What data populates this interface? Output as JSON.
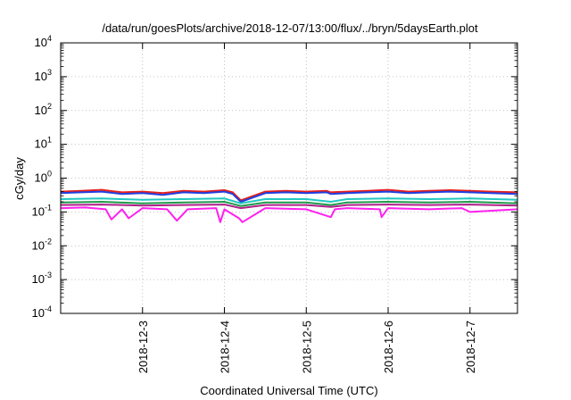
{
  "chart_data": {
    "type": "line",
    "title": "/data/run/goesPlots/archive/2018-12-07/13:00/flux/../bryn/5daysEarth.plot",
    "xlabel": "Coordinated Universal Time (UTC)",
    "ylabel": "cGy/day",
    "yscale": "log",
    "ylim": [
      0.0001,
      10000
    ],
    "xlim": [
      0.0,
      5.58
    ],
    "grid": true,
    "y_ticks": [
      {
        "base": "10",
        "exp": "-4"
      },
      {
        "base": "10",
        "exp": "-3"
      },
      {
        "base": "10",
        "exp": "-2"
      },
      {
        "base": "10",
        "exp": "-1"
      },
      {
        "base": "10",
        "exp": "0"
      },
      {
        "base": "10",
        "exp": "1"
      },
      {
        "base": "10",
        "exp": "2"
      },
      {
        "base": "10",
        "exp": "3"
      },
      {
        "base": "10",
        "exp": "4"
      }
    ],
    "x_ticks": [
      {
        "label": "2018-12-3",
        "x": 1
      },
      {
        "label": "2018-12-4",
        "x": 2
      },
      {
        "label": "2018-12-5",
        "x": 3
      },
      {
        "label": "2018-12-6",
        "x": 4
      },
      {
        "label": "2018-12-7",
        "x": 5
      }
    ],
    "series": [
      {
        "color": "#e8201a",
        "x": [
          0.0,
          0.25,
          0.5,
          0.75,
          1.0,
          1.25,
          1.5,
          1.75,
          2.0,
          2.1,
          2.2,
          2.5,
          2.75,
          3.0,
          3.25,
          3.3,
          3.5,
          3.75,
          4.0,
          4.25,
          4.5,
          4.75,
          5.0,
          5.25,
          5.58
        ],
        "values": [
          0.4,
          0.42,
          0.45,
          0.38,
          0.4,
          0.36,
          0.42,
          0.4,
          0.44,
          0.38,
          0.22,
          0.4,
          0.42,
          0.4,
          0.42,
          0.38,
          0.4,
          0.42,
          0.45,
          0.4,
          0.42,
          0.44,
          0.42,
          0.4,
          0.38
        ]
      },
      {
        "color": "#1f3fe0",
        "x": [
          0.0,
          0.25,
          0.5,
          0.75,
          1.0,
          1.25,
          1.5,
          1.75,
          2.0,
          2.1,
          2.2,
          2.5,
          2.75,
          3.0,
          3.25,
          3.3,
          3.5,
          3.75,
          4.0,
          4.25,
          4.5,
          4.75,
          5.0,
          5.25,
          5.58
        ],
        "values": [
          0.36,
          0.38,
          0.4,
          0.34,
          0.36,
          0.32,
          0.38,
          0.36,
          0.4,
          0.34,
          0.2,
          0.36,
          0.38,
          0.36,
          0.38,
          0.34,
          0.36,
          0.38,
          0.4,
          0.36,
          0.38,
          0.4,
          0.38,
          0.36,
          0.34
        ]
      },
      {
        "color": "#20c8c0",
        "x": [
          0.0,
          0.5,
          1.0,
          1.5,
          2.0,
          2.2,
          2.5,
          3.0,
          3.3,
          3.5,
          4.0,
          4.5,
          5.0,
          5.58
        ],
        "values": [
          0.24,
          0.25,
          0.23,
          0.24,
          0.25,
          0.18,
          0.24,
          0.24,
          0.2,
          0.24,
          0.25,
          0.24,
          0.25,
          0.23
        ]
      },
      {
        "color": "#1e9b4a",
        "x": [
          0.0,
          0.5,
          1.0,
          1.5,
          2.0,
          2.2,
          2.5,
          3.0,
          3.3,
          3.5,
          4.0,
          4.5,
          5.0,
          5.58
        ],
        "values": [
          0.19,
          0.2,
          0.18,
          0.19,
          0.2,
          0.15,
          0.19,
          0.19,
          0.16,
          0.19,
          0.2,
          0.19,
          0.2,
          0.18
        ]
      },
      {
        "color": "#b0208a",
        "x": [
          0.0,
          0.5,
          1.0,
          1.5,
          2.0,
          2.2,
          2.5,
          3.0,
          3.3,
          3.5,
          4.0,
          4.5,
          5.0,
          5.58
        ],
        "values": [
          0.16,
          0.165,
          0.155,
          0.16,
          0.165,
          0.13,
          0.16,
          0.16,
          0.14,
          0.16,
          0.165,
          0.16,
          0.165,
          0.155
        ]
      },
      {
        "color": "#ff20f0",
        "x": [
          0.0,
          0.3,
          0.55,
          0.62,
          0.75,
          0.83,
          1.0,
          1.3,
          1.42,
          1.55,
          1.9,
          1.95,
          2.0,
          2.18,
          2.22,
          2.5,
          3.0,
          3.3,
          3.35,
          3.5,
          3.9,
          3.92,
          4.0,
          4.5,
          4.9,
          5.0,
          5.58
        ],
        "values": [
          0.13,
          0.135,
          0.12,
          0.06,
          0.12,
          0.065,
          0.13,
          0.12,
          0.055,
          0.12,
          0.13,
          0.05,
          0.12,
          0.065,
          0.05,
          0.13,
          0.12,
          0.07,
          0.12,
          0.13,
          0.12,
          0.07,
          0.13,
          0.12,
          0.13,
          0.1,
          0.12
        ]
      }
    ]
  }
}
